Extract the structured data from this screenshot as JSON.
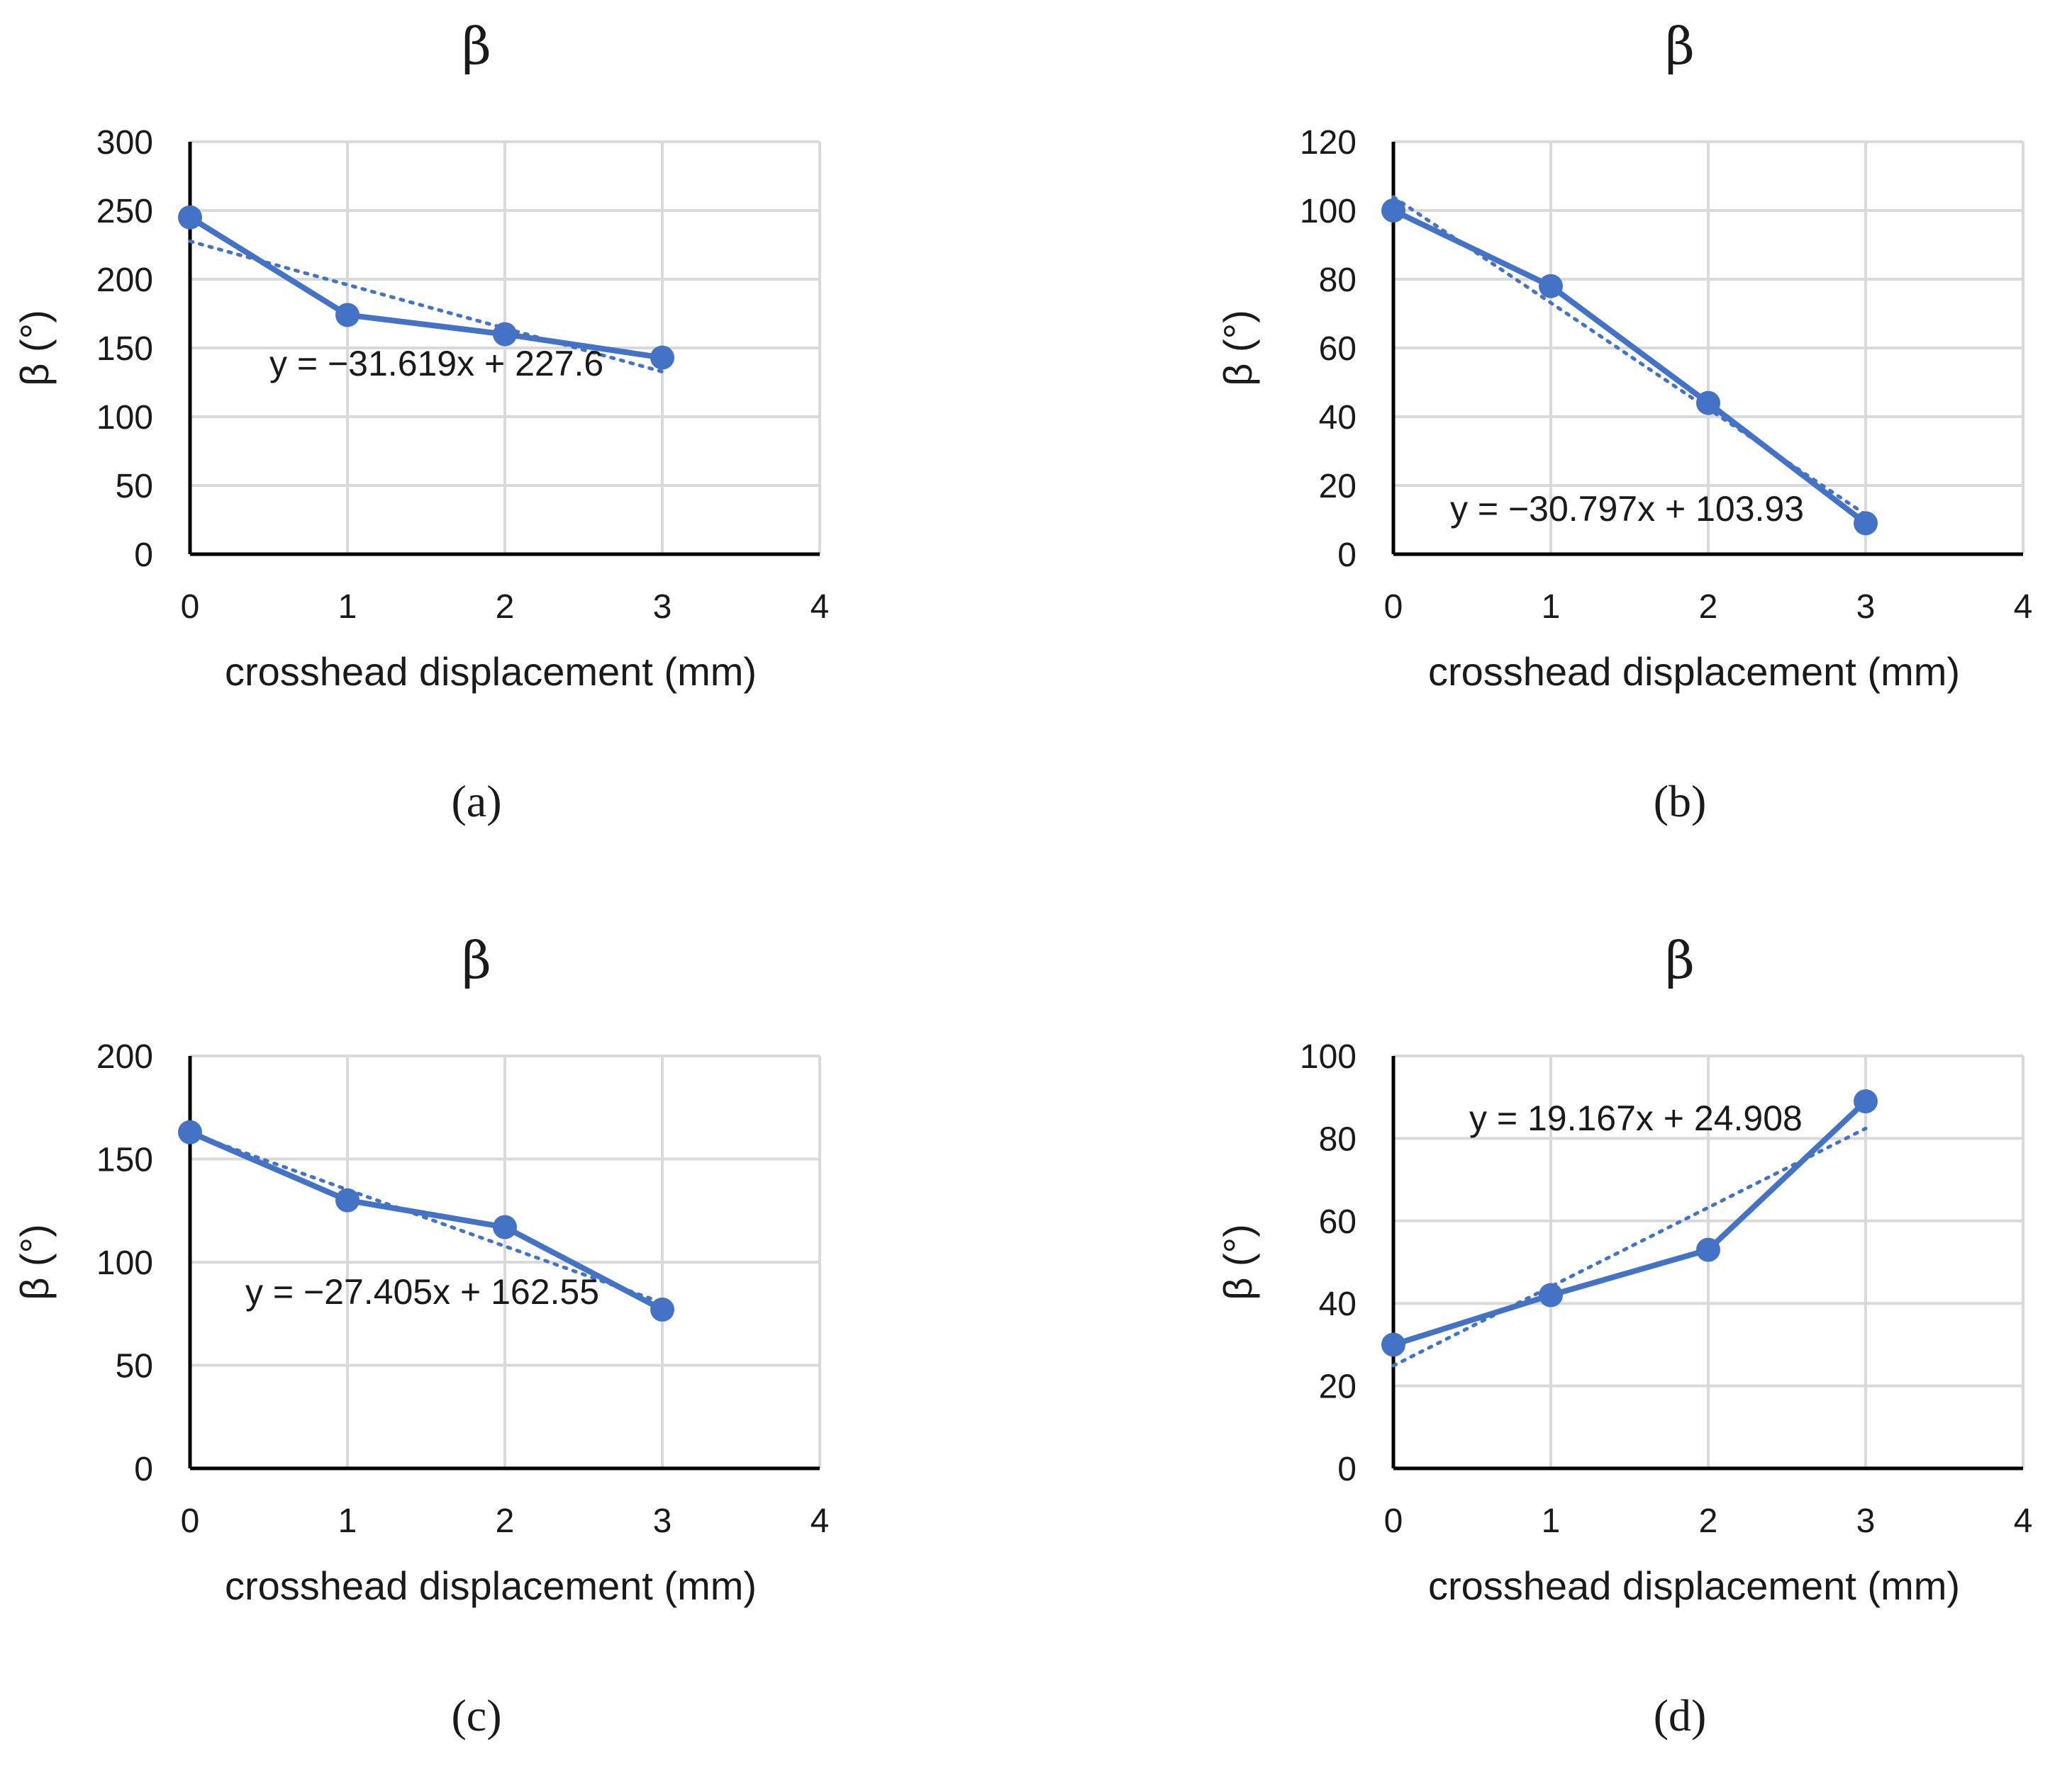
{
  "chart_data": [
    {
      "type": "line",
      "panel": "a",
      "title": "β",
      "caption": "(a)",
      "xlabel": "crosshead displacement (mm)",
      "ylabel": "β (°)",
      "xlim": [
        0,
        4
      ],
      "ylim": [
        0,
        300
      ],
      "xticks": [
        0,
        1,
        2,
        3,
        4
      ],
      "yticks": [
        0,
        50,
        100,
        150,
        200,
        250,
        300
      ],
      "grid": true,
      "color": "#4472C4",
      "series": [
        {
          "name": "β",
          "x": [
            0,
            1,
            2,
            3
          ],
          "y": [
            245,
            174,
            160,
            143
          ]
        }
      ],
      "trendline": {
        "slope": -31.619,
        "intercept": 227.6,
        "label": "y = −31.619x + 227.6"
      }
    },
    {
      "type": "line",
      "panel": "b",
      "title": "β",
      "caption": "(b)",
      "xlabel": "crosshead displacement (mm)",
      "ylabel": "β (°)",
      "xlim": [
        0,
        4
      ],
      "ylim": [
        0,
        120
      ],
      "xticks": [
        0,
        1,
        2,
        3,
        4
      ],
      "yticks": [
        0,
        20,
        40,
        60,
        80,
        100,
        120
      ],
      "grid": true,
      "color": "#4472C4",
      "series": [
        {
          "name": "β",
          "x": [
            0,
            1,
            2,
            3
          ],
          "y": [
            100,
            78,
            44,
            9
          ]
        }
      ],
      "trendline": {
        "slope": -30.797,
        "intercept": 103.93,
        "label": "y = −30.797x + 103.93"
      }
    },
    {
      "type": "line",
      "panel": "c",
      "title": "β",
      "caption": "(c)",
      "xlabel": "crosshead displacement (mm)",
      "ylabel": "β (°)",
      "xlim": [
        0,
        4
      ],
      "ylim": [
        0,
        200
      ],
      "xticks": [
        0,
        1,
        2,
        3,
        4
      ],
      "yticks": [
        0,
        50,
        100,
        150,
        200
      ],
      "grid": true,
      "color": "#4472C4",
      "series": [
        {
          "name": "β",
          "x": [
            0,
            1,
            2,
            3
          ],
          "y": [
            163,
            130,
            117,
            77
          ]
        }
      ],
      "trendline": {
        "slope": -27.405,
        "intercept": 162.55,
        "label": "y = −27.405x + 162.55"
      }
    },
    {
      "type": "line",
      "panel": "d",
      "title": "β",
      "caption": "(d)",
      "xlabel": "crosshead displacement (mm)",
      "ylabel": "β (°)",
      "xlim": [
        0,
        4
      ],
      "ylim": [
        0,
        100
      ],
      "xticks": [
        0,
        1,
        2,
        3,
        4
      ],
      "yticks": [
        0,
        20,
        40,
        60,
        80,
        100
      ],
      "grid": true,
      "color": "#4472C4",
      "series": [
        {
          "name": "β",
          "x": [
            0,
            1,
            2,
            3
          ],
          "y": [
            30,
            42,
            53,
            89
          ]
        }
      ],
      "trendline": {
        "slope": 19.167,
        "intercept": 24.908,
        "label": "y = 19.167x + 24.908"
      }
    }
  ]
}
